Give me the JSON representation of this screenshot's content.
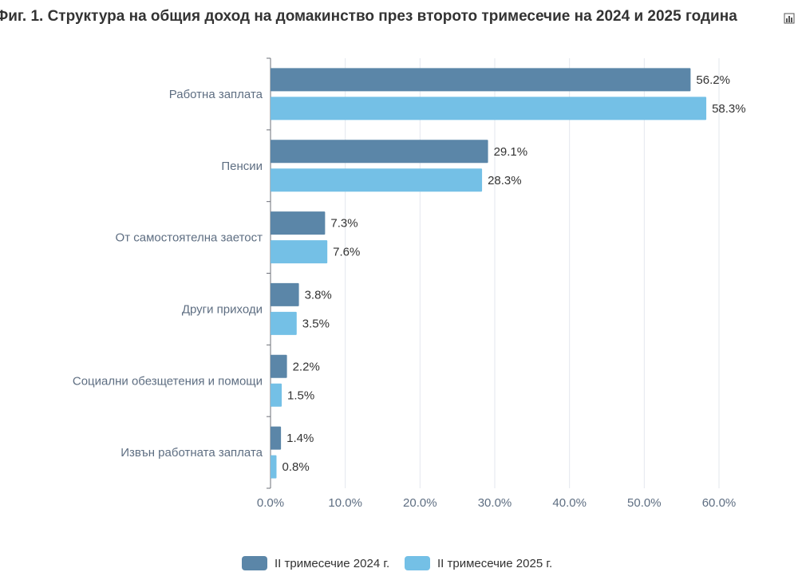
{
  "title": "Фиг. 1. Структура на общия доход на домакинство през второто тримесечие на 2024 и 2025 година",
  "title_icon": "bar-chart-icon",
  "colors": {
    "series_2024": "#5B86A8",
    "series_2025": "#74C0E6",
    "grid": "#E3E7EE",
    "axis": "#6E7079",
    "label": "#5E6E82",
    "value_label": "#333333"
  },
  "chart_data": {
    "type": "bar",
    "orientation": "horizontal",
    "categories": [
      "Работна заплата",
      "Пенсии",
      "От самостоятелна заетост",
      "Други приходи",
      "Социални обезщетения и помощи",
      "Извън работната заплата"
    ],
    "series": [
      {
        "name": "II тримесечие 2024 г.",
        "values": [
          56.2,
          29.1,
          7.3,
          3.8,
          2.2,
          1.4
        ],
        "labels": [
          "56.2%",
          "29.1%",
          "7.3%",
          "3.8%",
          "2.2%",
          "1.4%"
        ]
      },
      {
        "name": "II тримесечие 2025 г.",
        "values": [
          58.3,
          28.3,
          7.6,
          3.5,
          1.5,
          0.8
        ],
        "labels": [
          "58.3%",
          "28.3%",
          "7.6%",
          "3.5%",
          "1.5%",
          "0.8%"
        ]
      }
    ],
    "x_ticks": [
      "0.0%",
      "10.0%",
      "20.0%",
      "30.0%",
      "40.0%",
      "50.0%",
      "60.0%"
    ],
    "xlim": [
      0,
      60
    ],
    "grid": true,
    "legend_position": "bottom"
  }
}
